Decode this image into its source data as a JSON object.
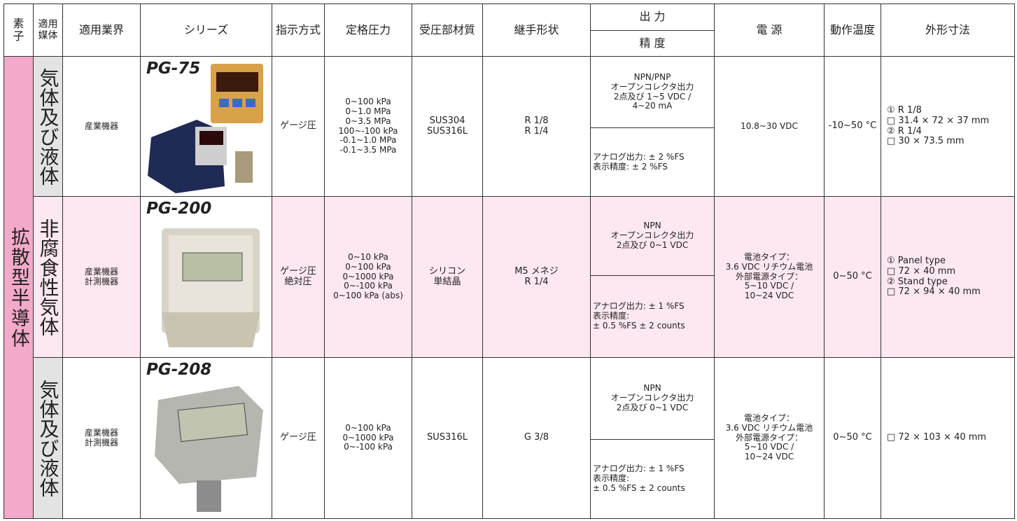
{
  "header": {
    "element": "素\n子",
    "media": "適用\n媒体",
    "industry": "適用業界",
    "series": "シリーズ",
    "indication": "指示方式",
    "rated_pressure": "定格圧力",
    "material": "受圧部材質",
    "fitting": "継手形状",
    "output": "出 力",
    "accuracy": "精 度",
    "power": "電 源",
    "temperature": "動作温度",
    "dimensions": "外形寸法"
  },
  "element_type": "拡散型半導体",
  "products": [
    {
      "media": "気体及び液体",
      "industry": "産業機器",
      "series": "PG-75",
      "indication": "ゲージ圧",
      "rated_pressure": "0~100 kPa\n0~1.0 MPa\n0~3.5 MPa\n100~-100 kPa\n-0.1~1.0 MPa\n-0.1~3.5 MPa",
      "material": "SUS304\nSUS316L",
      "fitting": "R 1/8\nR 1/4",
      "output": "NPN/PNP\nオープンコレクタ出力\n2点及び 1~5 VDC /\n4~20 mA",
      "accuracy": "アナログ出力: ± 2 %FS\n表示精度: ± 2 %FS",
      "power": "10.8~30 VDC",
      "temperature": "-10~50 °C",
      "dimensions": "① R 1/8\n□ 31.4 × 72 × 37 mm\n② R 1/4\n□ 30 × 73.5 mm"
    },
    {
      "media": "非腐食性気体",
      "industry": "産業機器\n計測機器",
      "series": "PG-200",
      "indication": "ゲージ圧\n絶対圧",
      "rated_pressure": "0~10 kPa\n0~100 kPa\n0~1000 kPa\n0~-100 kPa\n0~100 kPa (abs)",
      "material": "シリコン\n単結晶",
      "fitting": "M5 メネジ\nR 1/4",
      "output": "NPN\nオープンコレクタ出力\n2点及び 0~1 VDC",
      "accuracy": "アナログ出力: ± 1 %FS\n表示精度:\n± 0.5 %FS ± 2 counts",
      "power": "電池タイプ：\n3.6 VDC リチウム電池\n外部電源タイプ：\n5~10 VDC /\n10~24 VDC",
      "temperature": "0~50 °C",
      "dimensions": "① Panel type\n□ 72 × 40 mm\n② Stand type\n□ 72 × 94 × 40 mm"
    },
    {
      "media": "気体及び液体",
      "industry": "産業機器\n計測機器",
      "series": "PG-208",
      "indication": "ゲージ圧",
      "rated_pressure": "0~100 kPa\n0~1000 kPa\n0~-100 kPa",
      "material": "SUS316L",
      "fitting": "G 3/8",
      "output": "NPN\nオープンコレクタ出力\n2点及び 0~1 VDC",
      "accuracy": "アナログ出力: ± 1 %FS\n表示精度:\n± 0.5 %FS ± 2 counts",
      "power": "電池タイプ：\n3.6 VDC リチウム電池\n外部電源タイプ：\n5~10 VDC /\n10~24 VDC",
      "temperature": "0~50 °C",
      "dimensions": "□ 72 × 103 × 40 mm"
    }
  ]
}
